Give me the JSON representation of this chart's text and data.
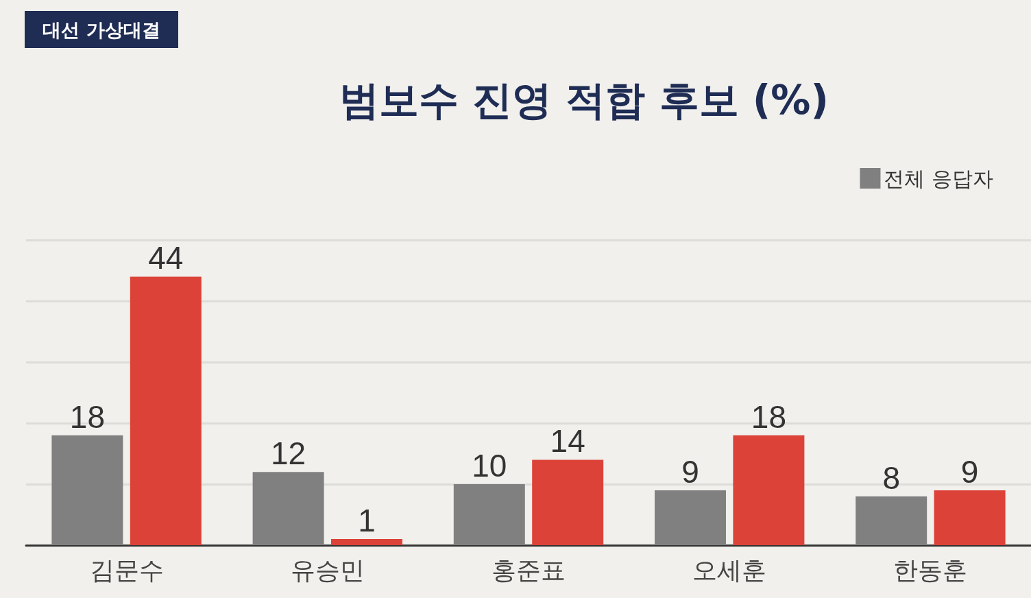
{
  "chart_data": {
    "type": "bar",
    "title": "범보수 진영 적합 후보 (%)",
    "annotations": [
      "대선 가상대결"
    ],
    "categories": [
      "김문수",
      "유승민",
      "홍준표",
      "오세훈",
      "한동훈"
    ],
    "series": [
      {
        "name": "전체 응답자",
        "color": "#808080",
        "values": [
          18,
          12,
          10,
          9,
          8
        ]
      },
      {
        "color": "#dc4237",
        "values": [
          44,
          1,
          14,
          18,
          9
        ]
      }
    ],
    "ylim": [
      0,
      50
    ],
    "yticks": [
      {
        "value": 0,
        "label": null
      },
      {
        "value": 10,
        "label": null
      },
      {
        "value": 20,
        "label": null
      },
      {
        "value": 30,
        "label": null
      },
      {
        "value": 40,
        "label": null
      },
      {
        "value": 50,
        "label": null
      }
    ],
    "grid": "y",
    "tick_labels": "x",
    "legend": "top right",
    "data_labels": true
  }
}
